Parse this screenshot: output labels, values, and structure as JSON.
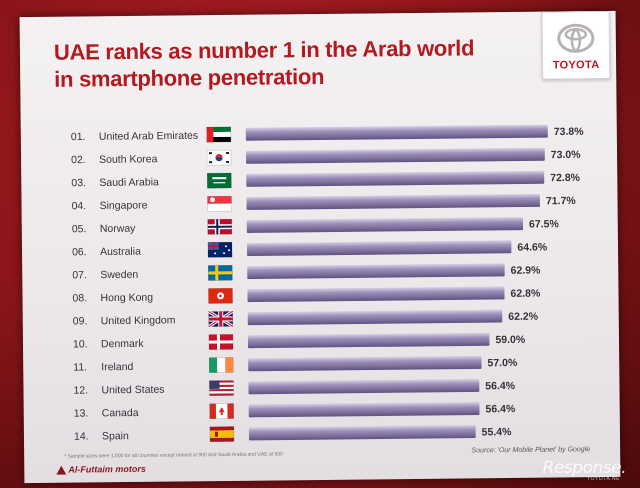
{
  "title_lines": [
    "UAE ranks as number 1 in the Arab world",
    "in smartphone penetration"
  ],
  "logo": {
    "text": "TOYOTA",
    "icon": "toyota-emblem-icon"
  },
  "chart_data": {
    "type": "bar",
    "orientation": "horizontal",
    "title": "UAE ranks as number 1 in the Arab world in smartphone penetration",
    "ranks": [
      "01.",
      "02.",
      "03.",
      "04.",
      "05.",
      "06.",
      "07.",
      "08.",
      "09.",
      "10.",
      "11.",
      "12.",
      "13.",
      "14."
    ],
    "categories": [
      "United Arab Emirates",
      "South Korea",
      "Saudi Arabia",
      "Singapore",
      "Norway",
      "Australia",
      "Sweden",
      "Hong Kong",
      "United Kingdom",
      "Denmark",
      "Ireland",
      "United States",
      "Canada",
      "Spain"
    ],
    "values": [
      73.8,
      73.0,
      72.8,
      71.7,
      67.5,
      64.6,
      62.9,
      62.8,
      62.2,
      59.0,
      57.0,
      56.4,
      56.4,
      55.4
    ],
    "value_labels": [
      "73.8%",
      "73.0%",
      "72.8%",
      "71.7%",
      "67.5%",
      "64.6%",
      "62.9%",
      "62.8%",
      "62.2%",
      "59.0%",
      "57.0%",
      "56.4%",
      "56.4%",
      "55.4%"
    ],
    "flags": [
      "uae-flag-icon",
      "south-korea-flag-icon",
      "saudi-arabia-flag-icon",
      "singapore-flag-icon",
      "norway-flag-icon",
      "australia-flag-icon",
      "sweden-flag-icon",
      "hong-kong-flag-icon",
      "united-kingdom-flag-icon",
      "denmark-flag-icon",
      "ireland-flag-icon",
      "united-states-flag-icon",
      "canada-flag-icon",
      "spain-flag-icon"
    ],
    "xlim": [
      0,
      73.8
    ],
    "bar_color": "#8a7ba6",
    "grid": false
  },
  "footnote": "* Sample sizes were 1,000 for all countries except Ireland at 900 and Saudi Arabia and UAE at 500",
  "source": "Source: 'Our Mobile Planet' by Google",
  "company": "Al-Futtaim motors",
  "watermark": "Response.",
  "watermark_sub": "TOYOTA.NE",
  "colors": {
    "title": "#b4191f",
    "frame": "#8a1519"
  }
}
